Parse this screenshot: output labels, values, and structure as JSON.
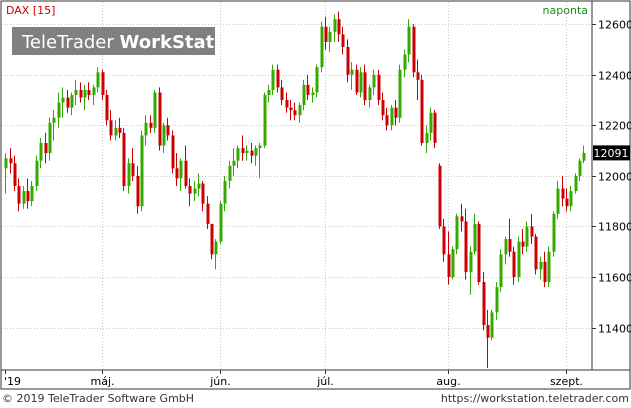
{
  "header": {
    "instrument": "DAX [15]",
    "frequency": "naponta",
    "watermark": "TeleTrader WorkStation",
    "watermark_brand": "TeleTrader",
    "watermark_product": "WorkStation"
  },
  "footer": {
    "copyright": "© 2019 TeleTrader Software GmbH",
    "url": "https://workstation.teletrader.com"
  },
  "colors": {
    "up": "#33aa00",
    "down": "#cc0000",
    "grid": "#c8c8c8",
    "frame": "#333333",
    "instrument_text": "#cc0000",
    "frequency_text": "#1e8a1e",
    "last_price_bg": "#000000",
    "last_price_text": "#ffffff"
  },
  "chart_data": {
    "type": "candlestick",
    "title": "DAX [15]",
    "subtitle": "naponta",
    "ylim": [
      11240,
      12680
    ],
    "y_ticks": [
      11400,
      11600,
      11800,
      12000,
      12200,
      12400,
      12600
    ],
    "x_tick_labels": [
      {
        "label": "'19",
        "index": 0
      },
      {
        "label": "máj.",
        "index": 22
      },
      {
        "label": "jún.",
        "index": 49
      },
      {
        "label": "júl.",
        "index": 73
      },
      {
        "label": "aug.",
        "index": 101
      },
      {
        "label": "szept.",
        "index": 128
      }
    ],
    "last_price": "12091",
    "last_value": 12091,
    "grid": true,
    "candles": [
      [
        12030,
        12090,
        11930,
        12070
      ],
      [
        12070,
        12110,
        12010,
        12050
      ],
      [
        12050,
        12080,
        11940,
        11960
      ],
      [
        11960,
        11990,
        11860,
        11890
      ],
      [
        11890,
        11960,
        11870,
        11940
      ],
      [
        11940,
        11990,
        11870,
        11900
      ],
      [
        11900,
        11980,
        11880,
        11960
      ],
      [
        11960,
        12080,
        11940,
        12060
      ],
      [
        12060,
        12150,
        12030,
        12130
      ],
      [
        12130,
        12170,
        12050,
        12090
      ],
      [
        12090,
        12230,
        12060,
        12210
      ],
      [
        12210,
        12260,
        12140,
        12230
      ],
      [
        12230,
        12330,
        12190,
        12290
      ],
      [
        12290,
        12350,
        12230,
        12310
      ],
      [
        12310,
        12340,
        12250,
        12270
      ],
      [
        12270,
        12330,
        12240,
        12320
      ],
      [
        12320,
        12380,
        12280,
        12340
      ],
      [
        12340,
        12370,
        12290,
        12310
      ],
      [
        12310,
        12360,
        12260,
        12340
      ],
      [
        12340,
        12370,
        12300,
        12320
      ],
      [
        12320,
        12360,
        12280,
        12350
      ],
      [
        12350,
        12430,
        12330,
        12410
      ],
      [
        12410,
        12420,
        12300,
        12320
      ],
      [
        12320,
        12340,
        12200,
        12220
      ],
      [
        12220,
        12260,
        12140,
        12160
      ],
      [
        12160,
        12220,
        12140,
        12190
      ],
      [
        12190,
        12230,
        12150,
        12170
      ],
      [
        12170,
        12190,
        11940,
        11960
      ],
      [
        11960,
        12070,
        11930,
        12050
      ],
      [
        12050,
        12110,
        11980,
        12000
      ],
      [
        12000,
        12040,
        11850,
        11880
      ],
      [
        11880,
        12180,
        11860,
        12160
      ],
      [
        12160,
        12240,
        12120,
        12210
      ],
      [
        12210,
        12240,
        12170,
        12190
      ],
      [
        12190,
        12340,
        12170,
        12330
      ],
      [
        12330,
        12350,
        12100,
        12120
      ],
      [
        12120,
        12210,
        12090,
        12200
      ],
      [
        12200,
        12230,
        12140,
        12160
      ],
      [
        12160,
        12180,
        12010,
        12030
      ],
      [
        12030,
        12090,
        11960,
        11990
      ],
      [
        11990,
        12070,
        11940,
        12060
      ],
      [
        12060,
        12120,
        11950,
        11960
      ],
      [
        11960,
        11990,
        11880,
        11930
      ],
      [
        11930,
        11980,
        11900,
        11950
      ],
      [
        11950,
        12010,
        11920,
        11970
      ],
      [
        11970,
        11980,
        11860,
        11890
      ],
      [
        11890,
        11920,
        11790,
        11810
      ],
      [
        11810,
        11810,
        11670,
        11690
      ],
      [
        11690,
        11750,
        11630,
        11740
      ],
      [
        11740,
        11900,
        11730,
        11890
      ],
      [
        11890,
        12000,
        11860,
        11980
      ],
      [
        11980,
        12060,
        11950,
        12040
      ],
      [
        12040,
        12110,
        12000,
        12060
      ],
      [
        12060,
        12120,
        12030,
        12110
      ],
      [
        12110,
        12160,
        12060,
        12090
      ],
      [
        12090,
        12120,
        12060,
        12100
      ],
      [
        12100,
        12130,
        12050,
        12080
      ],
      [
        12080,
        12120,
        12040,
        12110
      ],
      [
        12110,
        12130,
        11990,
        12120
      ],
      [
        12120,
        12330,
        12110,
        12320
      ],
      [
        12320,
        12360,
        12290,
        12340
      ],
      [
        12340,
        12440,
        12320,
        12420
      ],
      [
        12420,
        12440,
        12330,
        12350
      ],
      [
        12350,
        12380,
        12280,
        12300
      ],
      [
        12300,
        12330,
        12250,
        12270
      ],
      [
        12270,
        12300,
        12220,
        12260
      ],
      [
        12260,
        12290,
        12220,
        12240
      ],
      [
        12240,
        12290,
        12210,
        12280
      ],
      [
        12280,
        12380,
        12260,
        12360
      ],
      [
        12360,
        12400,
        12300,
        12320
      ],
      [
        12320,
        12350,
        12290,
        12330
      ],
      [
        12330,
        12440,
        12310,
        12430
      ],
      [
        12430,
        12610,
        12410,
        12590
      ],
      [
        12590,
        12630,
        12500,
        12530
      ],
      [
        12530,
        12590,
        12490,
        12570
      ],
      [
        12570,
        12640,
        12530,
        12620
      ],
      [
        12620,
        12650,
        12530,
        12560
      ],
      [
        12560,
        12590,
        12480,
        12510
      ],
      [
        12510,
        12540,
        12370,
        12400
      ],
      [
        12400,
        12450,
        12340,
        12420
      ],
      [
        12420,
        12440,
        12320,
        12330
      ],
      [
        12330,
        12430,
        12310,
        12410
      ],
      [
        12410,
        12440,
        12280,
        12300
      ],
      [
        12300,
        12360,
        12270,
        12350
      ],
      [
        12350,
        12420,
        12320,
        12400
      ],
      [
        12400,
        12420,
        12280,
        12300
      ],
      [
        12300,
        12330,
        12220,
        12240
      ],
      [
        12240,
        12270,
        12180,
        12200
      ],
      [
        12200,
        12280,
        12180,
        12270
      ],
      [
        12270,
        12300,
        12200,
        12230
      ],
      [
        12230,
        12440,
        12210,
        12420
      ],
      [
        12420,
        12500,
        12390,
        12480
      ],
      [
        12480,
        12620,
        12450,
        12590
      ],
      [
        12590,
        12600,
        12390,
        12410
      ],
      [
        12410,
        12460,
        12300,
        12380
      ],
      [
        12380,
        12400,
        12120,
        12130
      ],
      [
        12130,
        12200,
        12090,
        12170
      ],
      [
        12170,
        12270,
        12140,
        12250
      ],
      [
        12250,
        12260,
        12110,
        12130
      ],
      [
        12040,
        12050,
        11790,
        11800
      ],
      [
        11800,
        11830,
        11660,
        11690
      ],
      [
        11690,
        11780,
        11570,
        11600
      ],
      [
        11600,
        11720,
        11590,
        11710
      ],
      [
        11710,
        11850,
        11690,
        11840
      ],
      [
        11840,
        11890,
        11780,
        11820
      ],
      [
        11820,
        11870,
        11590,
        11620
      ],
      [
        11620,
        11720,
        11530,
        11700
      ],
      [
        11700,
        11850,
        11690,
        11810
      ],
      [
        11810,
        11820,
        11570,
        11580
      ],
      [
        11580,
        11620,
        11390,
        11410
      ],
      [
        11410,
        11470,
        11240,
        11360
      ],
      [
        11360,
        11470,
        11350,
        11460
      ],
      [
        11460,
        11580,
        11430,
        11560
      ],
      [
        11560,
        11710,
        11540,
        11690
      ],
      [
        11690,
        11760,
        11650,
        11750
      ],
      [
        11750,
        11830,
        11680,
        11700
      ],
      [
        11700,
        11720,
        11570,
        11600
      ],
      [
        11600,
        11760,
        11580,
        11740
      ],
      [
        11740,
        11790,
        11690,
        11720
      ],
      [
        11720,
        11820,
        11700,
        11800
      ],
      [
        11800,
        11850,
        11730,
        11760
      ],
      [
        11760,
        11770,
        11610,
        11630
      ],
      [
        11630,
        11680,
        11590,
        11660
      ],
      [
        11660,
        11700,
        11560,
        11580
      ],
      [
        11580,
        11720,
        11560,
        11700
      ],
      [
        11700,
        11860,
        11680,
        11850
      ],
      [
        11850,
        11980,
        11830,
        11950
      ],
      [
        11950,
        12000,
        11880,
        11910
      ],
      [
        11910,
        11950,
        11860,
        11880
      ],
      [
        11880,
        11960,
        11860,
        11940
      ],
      [
        11940,
        12010,
        11930,
        12000
      ],
      [
        12000,
        12070,
        11980,
        12060
      ],
      [
        12060,
        12120,
        12050,
        12091
      ]
    ]
  }
}
